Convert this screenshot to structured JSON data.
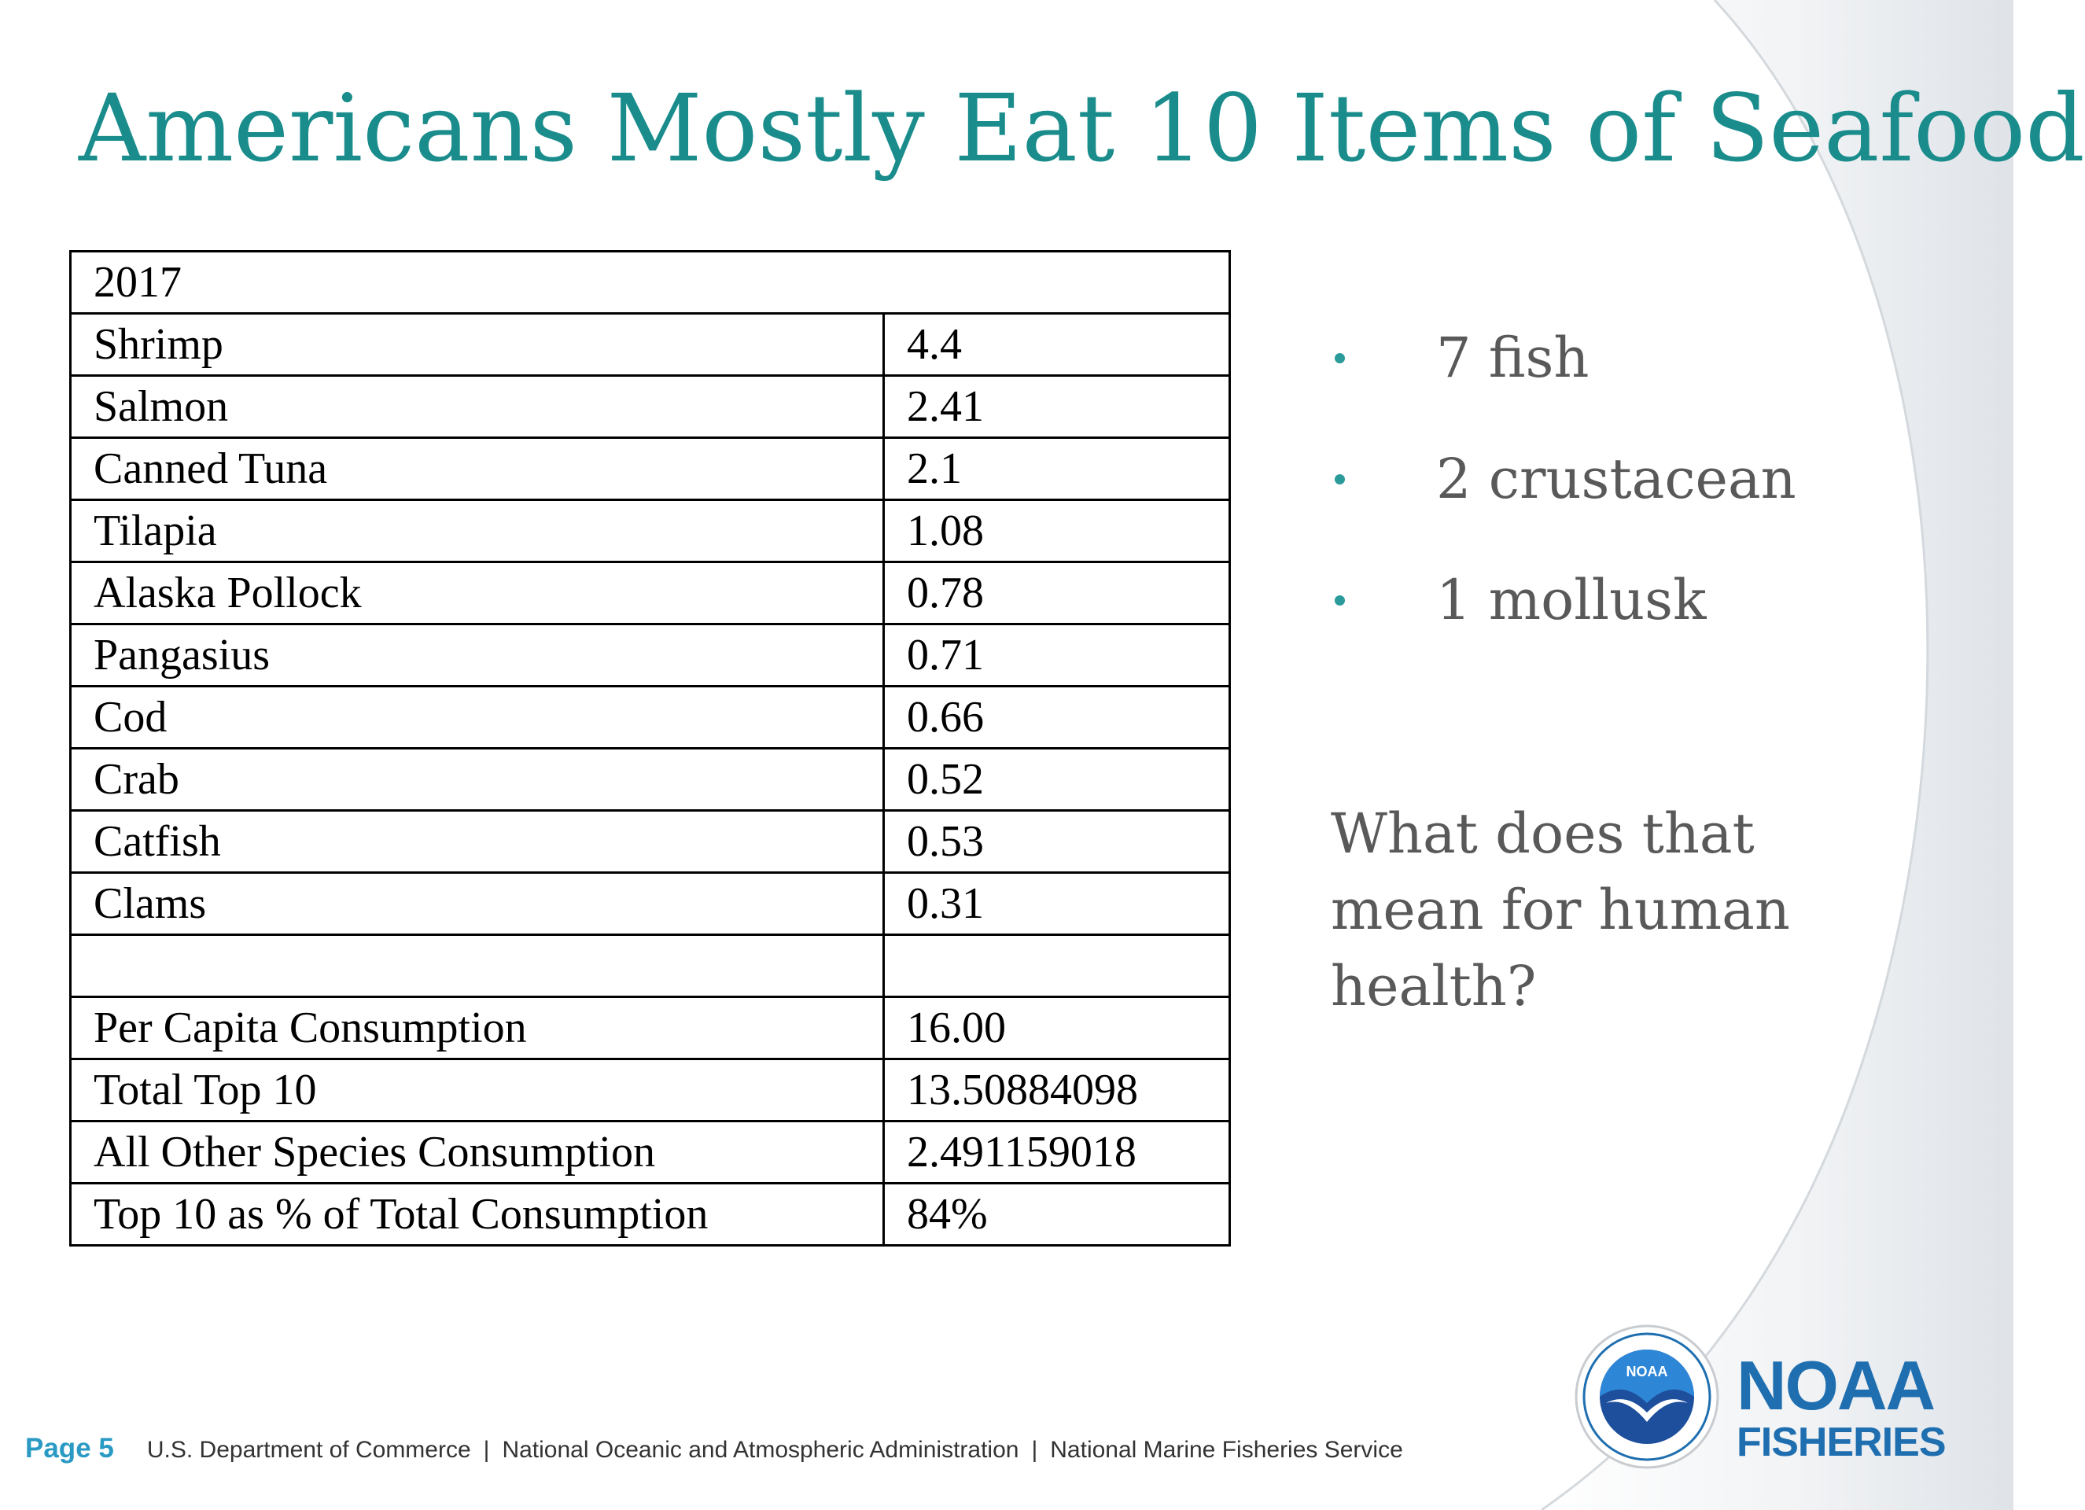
{
  "slide": {
    "title": "Americans Mostly Eat 10 Items of Seafood"
  },
  "table": {
    "header": "2017",
    "rows": [
      {
        "label": "Shrimp",
        "value": "4.4"
      },
      {
        "label": "Salmon",
        "value": "2.41"
      },
      {
        "label": "Canned Tuna",
        "value": "2.1"
      },
      {
        "label": "Tilapia",
        "value": "1.08"
      },
      {
        "label": "Alaska Pollock",
        "value": "0.78"
      },
      {
        "label": "Pangasius",
        "value": "0.71"
      },
      {
        "label": "Cod",
        "value": "0.66"
      },
      {
        "label": "Crab",
        "value": "0.52"
      },
      {
        "label": "Catfish",
        "value": "0.53"
      },
      {
        "label": "Clams",
        "value": "0.31"
      },
      {
        "label": "",
        "value": ""
      },
      {
        "label": "Per Capita Consumption",
        "value": "16.00"
      },
      {
        "label": "Total Top 10",
        "value": "13.50884098"
      },
      {
        "label": "All Other Species Consumption",
        "value": "2.491159018"
      },
      {
        "label": "Top 10 as % of Total Consumption",
        "value": "84%"
      }
    ]
  },
  "bullets": [
    "7 fish",
    "2 crustacean",
    "1 mollusk"
  ],
  "question": "What does that\nmean for  human\nhealth?",
  "footer": {
    "page": "Page 5",
    "orgs": [
      "U.S. Department of Commerce",
      "National Oceanic and Atmospheric Administration",
      "National Marine Fisheries Service"
    ],
    "separator": "|"
  },
  "logo": {
    "emblem_text": "NOAA",
    "wordmark_line1": "NOAA",
    "wordmark_line2": "FISHERIES"
  },
  "colors": {
    "title": "#1a8c8c",
    "bullet_dot": "#2a9a9a",
    "body_text": "#595959",
    "footer_page": "#2a9ac4",
    "noaa_blue": "#1f6fb0"
  }
}
